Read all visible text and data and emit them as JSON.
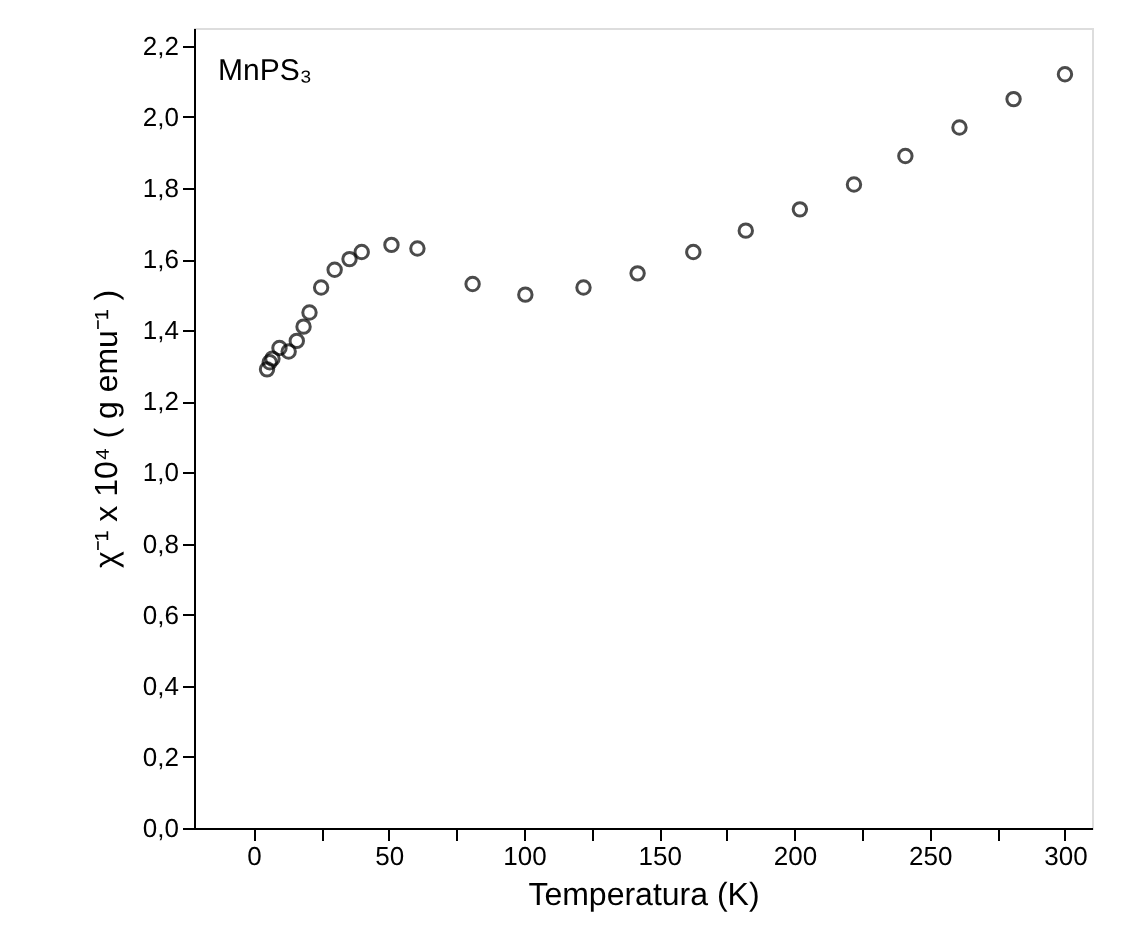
{
  "chart_data": {
    "type": "scatter",
    "xlabel": "Temperatura (K)",
    "ylabel": "χ⁻¹ x 10⁴ ( g emu⁻¹ )",
    "annotations": [
      "MnPS₃"
    ],
    "x": [
      5,
      6,
      7,
      9.6,
      13,
      16,
      18.5,
      20.7,
      25,
      30,
      35.5,
      40,
      51,
      60.6,
      81,
      100.5,
      122,
      142,
      162.6,
      182,
      202,
      222,
      241,
      261,
      281,
      300
    ],
    "series": [
      {
        "color": "#000000",
        "values": [
          1.29,
          1.31,
          1.32,
          1.35,
          1.34,
          1.37,
          1.41,
          1.45,
          1.52,
          1.57,
          1.6,
          1.62,
          1.64,
          1.63,
          1.53,
          1.5,
          1.52,
          1.56,
          1.62,
          1.68,
          1.74,
          1.81,
          1.89,
          1.97,
          2.05,
          2.12
        ]
      }
    ],
    "marker": "circle",
    "xlim": [
      -22,
      310
    ],
    "ylim": [
      0,
      2.25
    ],
    "xticks": [
      0,
      {
        "value": 25,
        "label": null
      },
      50,
      {
        "value": 75,
        "label": null
      },
      100,
      {
        "value": 125,
        "label": null
      },
      150,
      {
        "value": 175,
        "label": null
      },
      200,
      {
        "value": 225,
        "label": null
      },
      250,
      {
        "value": 275,
        "label": null
      },
      300
    ],
    "yticks": [
      {
        "value": 0,
        "label": "0,0"
      },
      {
        "value": 0.2,
        "label": "0,2"
      },
      {
        "value": 0.4,
        "label": "0,4"
      },
      {
        "value": 0.6,
        "label": "0,6"
      },
      {
        "value": 0.8,
        "label": "0,8"
      },
      {
        "value": 1.0,
        "label": "1,0"
      },
      {
        "value": 1.2,
        "label": "1,2"
      },
      {
        "value": 1.4,
        "label": "1,4"
      },
      {
        "value": 1.6,
        "label": "1,6"
      },
      {
        "value": 1.8,
        "label": "1,8"
      },
      {
        "value": 2.0,
        "label": "2,0"
      },
      {
        "value": 2.2,
        "label": "2,2"
      }
    ],
    "grid": false,
    "legend": false
  }
}
